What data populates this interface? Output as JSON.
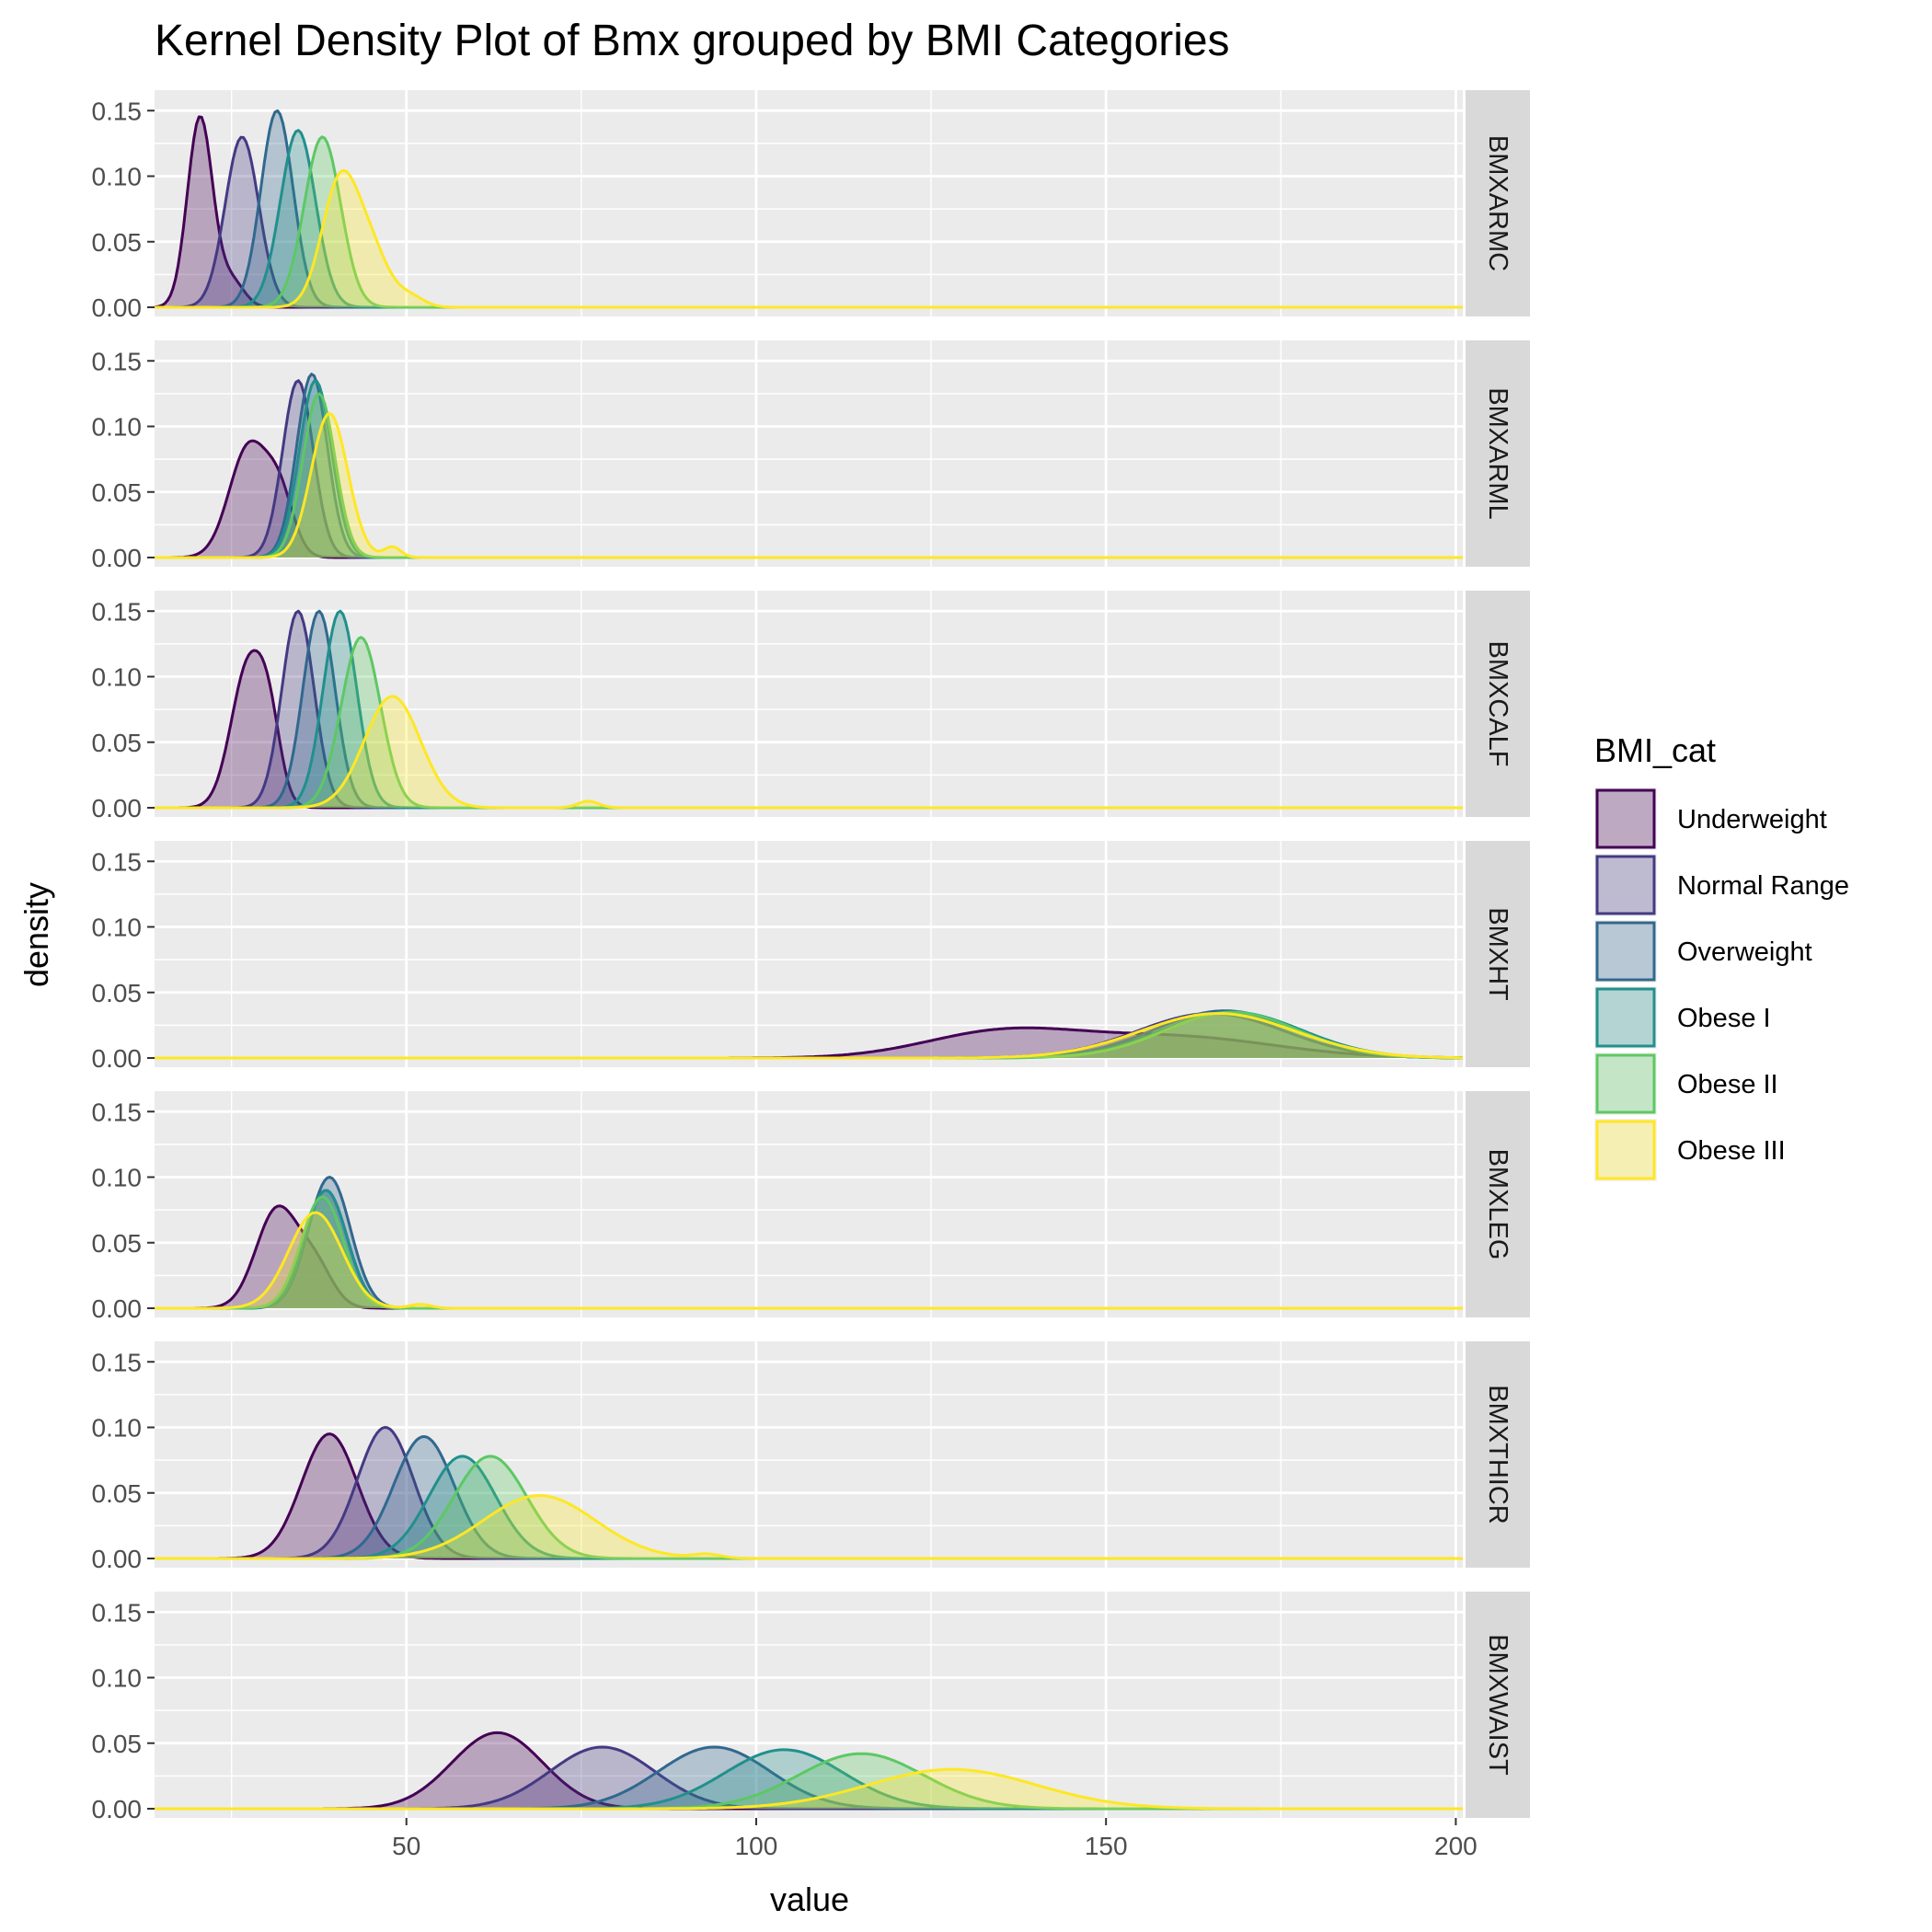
{
  "chart_data": {
    "type": "area",
    "title": "Kernel Density Plot of Bmx grouped by BMI Categories",
    "xlabel": "value",
    "ylabel": "density",
    "xlim": [
      14,
      201
    ],
    "ylim": [
      0,
      0.16
    ],
    "x_ticks": [
      50,
      100,
      150,
      200
    ],
    "y_ticks": [
      0.0,
      0.05,
      0.1,
      0.15
    ],
    "y_tick_labels": [
      "0.00",
      "0.05",
      "0.10",
      "0.15"
    ],
    "grid": true,
    "legend": {
      "title": "BMI_cat",
      "position": "right"
    },
    "series": [
      {
        "name": "Underweight",
        "color": "#440154"
      },
      {
        "name": "Normal Range",
        "color": "#443A83"
      },
      {
        "name": "Overweight",
        "color": "#31688E"
      },
      {
        "name": "Obese I",
        "color": "#21908C"
      },
      {
        "name": "Obese II",
        "color": "#5DC863"
      },
      {
        "name": "Obese III",
        "color": "#FDE725"
      }
    ],
    "facets": [
      {
        "label": "BMXARMC",
        "peaks": [
          {
            "series": "Underweight",
            "components": [
              [
                20.5,
                1.8,
                0.145
              ],
              [
                25.0,
                1.8,
                0.02
              ]
            ]
          },
          {
            "series": "Normal Range",
            "components": [
              [
                26.5,
                2.4,
                0.13
              ]
            ]
          },
          {
            "series": "Overweight",
            "components": [
              [
                31.5,
                2.3,
                0.15
              ]
            ]
          },
          {
            "series": "Obese I",
            "components": [
              [
                34.5,
                2.5,
                0.135
              ]
            ]
          },
          {
            "series": "Obese II",
            "components": [
              [
                38.0,
                2.6,
                0.13
              ]
            ]
          },
          {
            "series": "Obese III",
            "components": [
              [
                40.5,
                2.6,
                0.095
              ],
              [
                45.0,
                2.5,
                0.04
              ],
              [
                50.5,
                2.0,
                0.008
              ]
            ]
          }
        ]
      },
      {
        "label": "BMXARML",
        "peaks": [
          {
            "series": "Underweight",
            "components": [
              [
                27.5,
                2.8,
                0.085
              ],
              [
                32.0,
                2.0,
                0.04
              ]
            ]
          },
          {
            "series": "Normal Range",
            "components": [
              [
                34.5,
                2.2,
                0.135
              ]
            ]
          },
          {
            "series": "Overweight",
            "components": [
              [
                36.5,
                2.2,
                0.14
              ]
            ]
          },
          {
            "series": "Obese I",
            "components": [
              [
                37.0,
                2.3,
                0.135
              ]
            ]
          },
          {
            "series": "Obese II",
            "components": [
              [
                37.5,
                2.3,
                0.125
              ]
            ]
          },
          {
            "series": "Obese III",
            "components": [
              [
                39.0,
                2.6,
                0.11
              ],
              [
                48.0,
                1.2,
                0.008
              ]
            ]
          }
        ]
      },
      {
        "label": "BMXCALF",
        "peaks": [
          {
            "series": "Underweight",
            "components": [
              [
                27.5,
                2.5,
                0.11
              ],
              [
                30.5,
                1.6,
                0.04
              ]
            ]
          },
          {
            "series": "Normal Range",
            "components": [
              [
                34.5,
                2.3,
                0.15
              ]
            ]
          },
          {
            "series": "Overweight",
            "components": [
              [
                37.5,
                2.3,
                0.15
              ]
            ]
          },
          {
            "series": "Obese I",
            "components": [
              [
                40.5,
                2.4,
                0.15
              ]
            ]
          },
          {
            "series": "Obese II",
            "components": [
              [
                43.5,
                2.8,
                0.13
              ]
            ]
          },
          {
            "series": "Obese III",
            "components": [
              [
                48.0,
                4.0,
                0.085
              ],
              [
                76.0,
                1.5,
                0.005
              ]
            ]
          }
        ]
      },
      {
        "label": "BMXHT",
        "peaks": [
          {
            "series": "Underweight",
            "components": [
              [
                135.0,
                11.0,
                0.019
              ],
              [
                160.0,
                14.0,
                0.016
              ]
            ]
          },
          {
            "series": "Normal Range",
            "components": [
              [
                165.0,
                10.5,
                0.034
              ]
            ]
          },
          {
            "series": "Overweight",
            "components": [
              [
                167.0,
                10.0,
                0.036
              ]
            ]
          },
          {
            "series": "Obese I",
            "components": [
              [
                168.0,
                10.0,
                0.035
              ]
            ]
          },
          {
            "series": "Obese II",
            "components": [
              [
                168.0,
                9.5,
                0.035
              ]
            ]
          },
          {
            "series": "Obese III",
            "components": [
              [
                166.0,
                11.0,
                0.034
              ]
            ]
          }
        ]
      },
      {
        "label": "BMXLEG",
        "peaks": [
          {
            "series": "Underweight",
            "components": [
              [
                31.5,
                3.0,
                0.075
              ],
              [
                37.0,
                2.5,
                0.03
              ]
            ]
          },
          {
            "series": "Normal Range",
            "components": [
              [
                38.5,
                3.0,
                0.09
              ]
            ]
          },
          {
            "series": "Overweight",
            "components": [
              [
                39.0,
                3.0,
                0.1
              ]
            ]
          },
          {
            "series": "Obese I",
            "components": [
              [
                38.5,
                3.0,
                0.09
              ]
            ]
          },
          {
            "series": "Obese II",
            "components": [
              [
                38.0,
                3.0,
                0.085
              ]
            ]
          },
          {
            "series": "Obese III",
            "components": [
              [
                37.0,
                3.8,
                0.073
              ],
              [
                52.0,
                1.5,
                0.003
              ]
            ]
          }
        ]
      },
      {
        "label": "BMXTHICR",
        "peaks": [
          {
            "series": "Underweight",
            "components": [
              [
                39.0,
                4.0,
                0.095
              ]
            ]
          },
          {
            "series": "Normal Range",
            "components": [
              [
                47.0,
                4.0,
                0.1
              ]
            ]
          },
          {
            "series": "Overweight",
            "components": [
              [
                52.5,
                4.3,
                0.093
              ]
            ]
          },
          {
            "series": "Obese I",
            "components": [
              [
                58.0,
                4.8,
                0.078
              ]
            ]
          },
          {
            "series": "Obese II",
            "components": [
              [
                62.0,
                5.2,
                0.078
              ]
            ]
          },
          {
            "series": "Obese III",
            "components": [
              [
                69.0,
                8.0,
                0.048
              ],
              [
                93.0,
                2.0,
                0.003
              ]
            ]
          }
        ]
      },
      {
        "label": "BMXWAIST",
        "peaks": [
          {
            "series": "Underweight",
            "components": [
              [
                63.0,
                6.5,
                0.058
              ]
            ]
          },
          {
            "series": "Normal Range",
            "components": [
              [
                78.0,
                7.5,
                0.047
              ]
            ]
          },
          {
            "series": "Overweight",
            "components": [
              [
                94.0,
                8.0,
                0.047
              ]
            ]
          },
          {
            "series": "Obese I",
            "components": [
              [
                104.0,
                8.5,
                0.045
              ]
            ]
          },
          {
            "series": "Obese II",
            "components": [
              [
                115.0,
                9.0,
                0.042
              ]
            ]
          },
          {
            "series": "Obese III",
            "components": [
              [
                128.0,
                12.0,
                0.03
              ]
            ]
          }
        ]
      }
    ]
  }
}
